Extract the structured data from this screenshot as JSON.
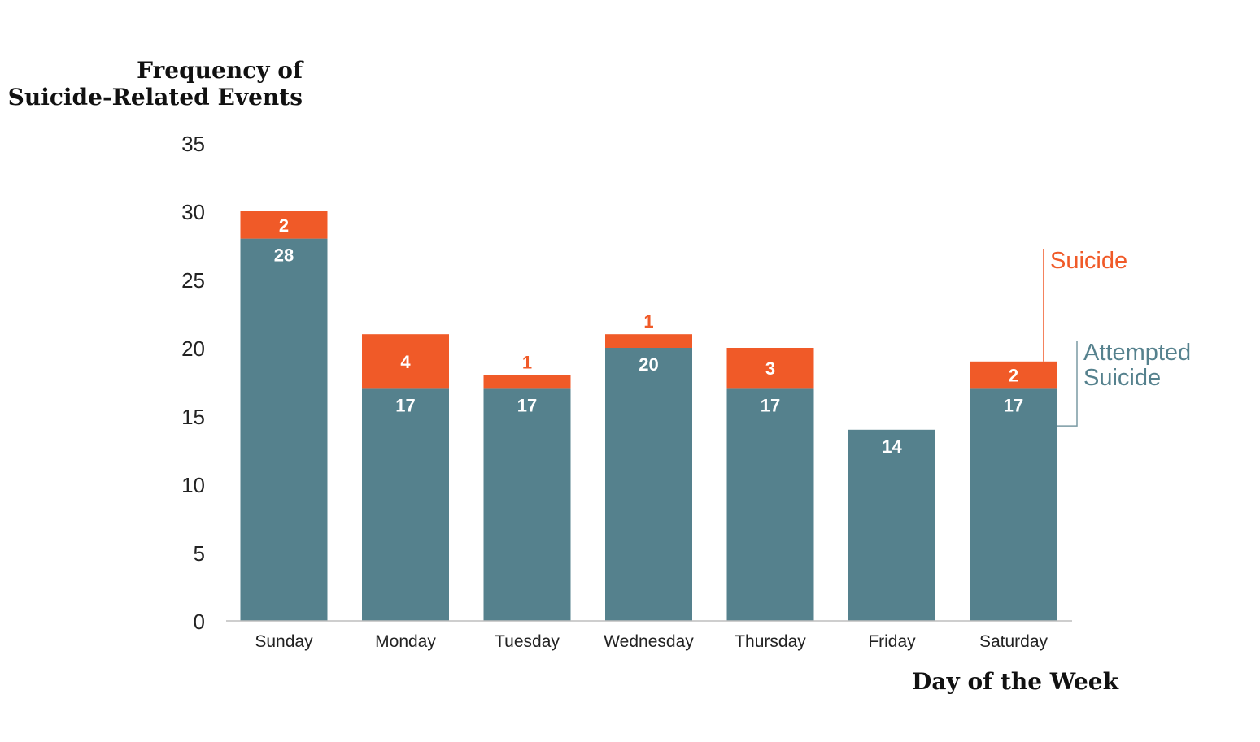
{
  "chart_data": {
    "type": "bar",
    "stacked": true,
    "title": "",
    "ylabel_line1": "Frequency of",
    "ylabel_line2": "Suicide-Related Events",
    "xlabel": "Day of the Week",
    "ylim": [
      0,
      35
    ],
    "yticks": [
      "0",
      "5",
      "10",
      "15",
      "20",
      "25",
      "30",
      "35"
    ],
    "grid": false,
    "legend_placement": "right",
    "categories": [
      "Sunday",
      "Monday",
      "Tuesday",
      "Wednesday",
      "Thursday",
      "Friday",
      "Saturday"
    ],
    "series": [
      {
        "name": "Attempted Suicide",
        "name_line1": "Attempted",
        "name_line2": "Suicide",
        "color": "#55818d",
        "values": [
          28,
          17,
          17,
          20,
          17,
          14,
          17
        ],
        "labels": [
          "28",
          "17",
          "17",
          "20",
          "17",
          "14",
          "17"
        ]
      },
      {
        "name": "Suicide",
        "color": "#f05a28",
        "values": [
          2,
          4,
          1,
          1,
          3,
          0,
          2
        ],
        "labels": [
          "2",
          "4",
          "1",
          "1",
          "3",
          "",
          "2"
        ]
      }
    ]
  }
}
